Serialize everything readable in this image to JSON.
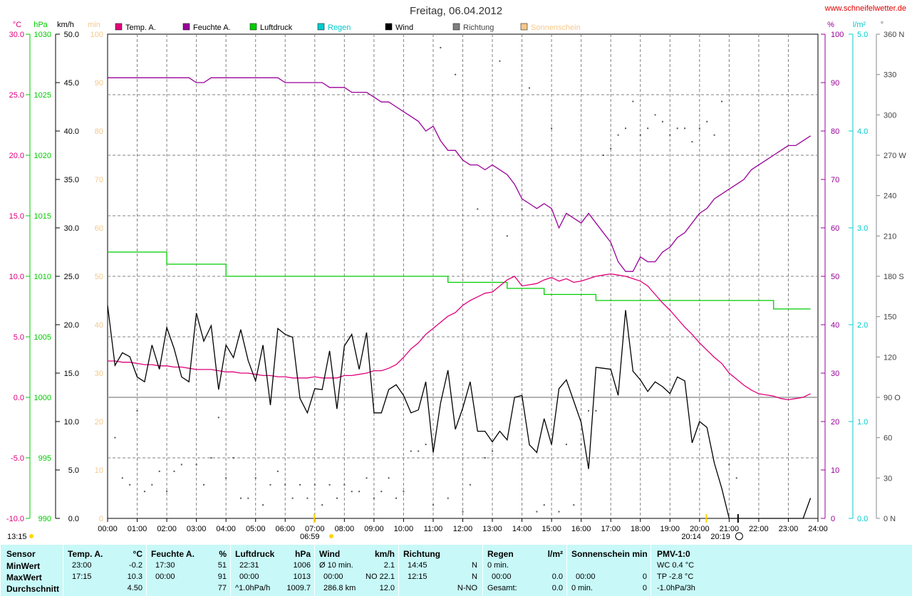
{
  "title": "Freitag, 06.04.2012",
  "site": "www.schneifelwetter.de",
  "colors": {
    "temp": "#e0007a",
    "humidity": "#990099",
    "pressure": "#00cc00",
    "rain": "#00cccc",
    "wind": "#000000",
    "direction": "#666666",
    "sunshine": "#f5c98a",
    "table_bg": "#c8f8f8"
  },
  "legend": [
    {
      "label": "Temp. A.",
      "color": "#e0007a"
    },
    {
      "label": "Feuchte A.",
      "color": "#990099"
    },
    {
      "label": "Luftdruck",
      "color": "#00cc00"
    },
    {
      "label": "Regen",
      "color": "#00cccc"
    },
    {
      "label": "Wind",
      "color": "#000000"
    },
    {
      "label": "Richtung",
      "color": "#808080"
    },
    {
      "label": "Sonnenschein",
      "color": "#f5c98a"
    }
  ],
  "axes": {
    "temp": {
      "unit": "°C",
      "ticks": [
        "30.0",
        "25.0",
        "20.0",
        "15.0",
        "10.0",
        "5.0",
        "0.0",
        "-5.0",
        "-10.0"
      ]
    },
    "pressure": {
      "unit": "hPa",
      "ticks": [
        "1030",
        "1025",
        "1020",
        "1015",
        "1010",
        "1005",
        "1000",
        "995",
        "990"
      ]
    },
    "wind": {
      "unit": "km/h",
      "ticks": [
        "50.0",
        "45.0",
        "40.0",
        "35.0",
        "30.0",
        "25.0",
        "20.0",
        "15.0",
        "10.0",
        "5.0",
        "0.0"
      ]
    },
    "sun": {
      "unit": "min",
      "ticks": [
        "100",
        "90",
        "80",
        "70",
        "60",
        "50",
        "40",
        "30",
        "20",
        "10",
        "0"
      ]
    },
    "humidity": {
      "unit": "%",
      "ticks": [
        "100",
        "90",
        "80",
        "70",
        "60",
        "50",
        "40",
        "30",
        "20",
        "10",
        "0"
      ]
    },
    "rain": {
      "unit": "l/m²",
      "ticks": [
        "5.0",
        "4.0",
        "3.0",
        "2.0",
        "1.0",
        "0.0"
      ]
    },
    "direction": {
      "unit": "°",
      "ticks": [
        "360 N",
        "330",
        "300",
        "270 W",
        "240",
        "210",
        "180 S",
        "150",
        "120",
        "90 O",
        "60",
        "30",
        "0 N"
      ]
    },
    "time": [
      "00:00",
      "01:00",
      "02:00",
      "03:00",
      "04:00",
      "05:00",
      "06:00",
      "07:00",
      "08:00",
      "09:00",
      "10:00",
      "11:00",
      "12:00",
      "13:00",
      "14:00",
      "15:00",
      "16:00",
      "17:00",
      "18:00",
      "19:00",
      "20:00",
      "21:00",
      "22:00",
      "23:00",
      "24:00"
    ]
  },
  "annotations": {
    "sunshine_left": "13:15",
    "sunrise": "06:59",
    "sunset": "20:14",
    "sunset2": "20:19"
  },
  "chart_data": {
    "type": "line",
    "title": "Freitag, 06.04.2012",
    "x_hours": [
      0,
      0.25,
      0.5,
      0.75,
      1,
      1.25,
      1.5,
      1.75,
      2,
      2.25,
      2.5,
      2.75,
      3,
      3.25,
      3.5,
      3.75,
      4,
      4.25,
      4.5,
      4.75,
      5,
      5.25,
      5.5,
      5.75,
      6,
      6.25,
      6.5,
      6.75,
      7,
      7.25,
      7.5,
      7.75,
      8,
      8.25,
      8.5,
      8.75,
      9,
      9.25,
      9.5,
      9.75,
      10,
      10.25,
      10.5,
      10.75,
      11,
      11.25,
      11.5,
      11.75,
      12,
      12.25,
      12.5,
      12.75,
      13,
      13.25,
      13.5,
      13.75,
      14,
      14.25,
      14.5,
      14.75,
      15,
      15.25,
      15.5,
      15.75,
      16,
      16.25,
      16.5,
      16.75,
      17,
      17.25,
      17.5,
      17.75,
      18,
      18.25,
      18.5,
      18.75,
      19,
      19.25,
      19.5,
      19.75,
      20,
      20.25,
      20.5,
      20.75,
      21,
      21.25,
      21.5,
      21.75,
      22,
      22.25,
      22.5,
      22.75,
      23,
      23.25,
      23.5,
      23.75
    ],
    "series": [
      {
        "name": "Temp. A.",
        "axis": "temp",
        "values": [
          3.0,
          3.0,
          2.9,
          2.9,
          2.8,
          2.7,
          2.7,
          2.6,
          2.6,
          2.5,
          2.5,
          2.4,
          2.3,
          2.3,
          2.3,
          2.2,
          2.1,
          2.1,
          2.0,
          2.0,
          1.9,
          1.8,
          1.8,
          1.7,
          1.7,
          1.6,
          1.6,
          1.6,
          1.7,
          1.6,
          1.6,
          1.6,
          1.8,
          1.8,
          1.9,
          2.0,
          2.2,
          2.2,
          2.4,
          2.7,
          3.3,
          4.0,
          4.5,
          5.2,
          5.7,
          6.2,
          6.7,
          7.0,
          7.6,
          8.0,
          8.3,
          8.6,
          8.7,
          9.2,
          9.7,
          10.0,
          9.2,
          9.3,
          9.4,
          9.7,
          9.9,
          9.6,
          9.8,
          9.5,
          9.6,
          9.8,
          10.0,
          10.1,
          10.2,
          10.1,
          10.0,
          9.8,
          9.6,
          9.2,
          8.5,
          7.8,
          7.2,
          6.5,
          5.8,
          5.2,
          4.5,
          3.9,
          3.3,
          2.8,
          2.0,
          1.5,
          1.0,
          0.6,
          0.3,
          0.2,
          0.1,
          -0.1,
          -0.2,
          -0.1,
          0.0,
          0.3
        ]
      },
      {
        "name": "Feuchte A.",
        "axis": "humidity",
        "values": [
          91,
          91,
          91,
          91,
          91,
          91,
          91,
          91,
          91,
          91,
          91,
          91,
          90,
          90,
          91,
          91,
          91,
          91,
          91,
          91,
          91,
          91,
          91,
          91,
          90,
          90,
          90,
          90,
          90,
          90,
          89,
          89,
          89,
          88,
          88,
          88,
          87,
          86,
          86,
          85,
          84,
          83,
          82,
          80,
          81,
          78,
          76,
          76,
          74,
          73,
          73,
          72,
          73,
          72,
          71,
          69,
          66,
          65,
          64,
          65,
          64,
          60,
          63,
          62,
          61,
          63,
          61,
          59,
          57,
          53,
          51,
          51,
          54,
          53,
          53,
          55,
          56,
          58,
          59,
          61,
          63,
          64,
          66,
          67,
          68,
          69,
          70,
          72,
          73,
          74,
          75,
          76,
          77,
          77,
          78,
          79
        ]
      },
      {
        "name": "Luftdruck",
        "axis": "pressure",
        "values": [
          1012,
          1012,
          1012,
          1012,
          1012,
          1012,
          1012,
          1012,
          1011,
          1011,
          1011,
          1011,
          1011,
          1011,
          1011,
          1011,
          1010,
          1010,
          1010,
          1010,
          1010,
          1010,
          1010,
          1010,
          1010,
          1010,
          1010,
          1010,
          1010,
          1010,
          1010,
          1010,
          1010,
          1010,
          1010,
          1010,
          1010,
          1010,
          1010,
          1010,
          1010,
          1010,
          1010,
          1010,
          1010,
          1010,
          1009.5,
          1009.5,
          1009.5,
          1009.5,
          1009.5,
          1009.5,
          1009.5,
          1009.5,
          1009,
          1009,
          1009,
          1009,
          1009,
          1008.5,
          1008.5,
          1008.5,
          1008.5,
          1008.5,
          1008.5,
          1008.5,
          1008,
          1008,
          1008,
          1008,
          1008,
          1008,
          1008,
          1008,
          1008,
          1008,
          1008,
          1008,
          1008,
          1008,
          1008,
          1008,
          1008,
          1008,
          1008,
          1008,
          1008,
          1008,
          1008,
          1008,
          1007.3,
          1007.3,
          1007.3,
          1007.3,
          1007.3,
          1007.3
        ]
      },
      {
        "name": "Wind",
        "axis": "wind",
        "values": [
          22.0,
          15.8,
          17.1,
          16.7,
          14.6,
          14.1,
          17.9,
          15.4,
          19.7,
          17.5,
          14.6,
          14.1,
          21.2,
          18.3,
          19.9,
          13.3,
          17.9,
          16.6,
          19.5,
          16.3,
          14.2,
          17.9,
          11.7,
          19.6,
          19.0,
          18.7,
          12.4,
          10.9,
          13.4,
          13.3,
          17.3,
          11.3,
          17.8,
          19.0,
          15.4,
          19.2,
          10.9,
          10.9,
          13.3,
          13.8,
          12.7,
          10.9,
          11.2,
          14.1,
          6.8,
          11.9,
          15.3,
          9.2,
          11.4,
          14.1,
          9.0,
          9.0,
          7.9,
          9.0,
          8.1,
          12.5,
          12.7,
          7.6,
          6.8,
          10.3,
          7.6,
          13.4,
          14.3,
          12.1,
          9.9,
          5.1,
          15.6,
          15.5,
          15.4,
          12.7,
          21.5,
          15.2,
          14.3,
          13.1,
          14.1,
          13.6,
          12.9,
          14.6,
          14.2,
          7.8,
          10.0,
          9.4,
          5.7,
          3.1,
          0.0,
          0.0,
          0.0,
          0.0,
          0.0,
          0.0,
          0.0,
          0.0,
          0.0,
          0.0,
          0.0,
          2.1
        ]
      },
      {
        "name": "Richtung",
        "axis": "direction",
        "points": [
          [
            0.25,
            60
          ],
          [
            0.5,
            30
          ],
          [
            0.75,
            25
          ],
          [
            1.0,
            80
          ],
          [
            1.25,
            20
          ],
          [
            1.5,
            25
          ],
          [
            1.75,
            35
          ],
          [
            2.0,
            20
          ],
          [
            2.25,
            35
          ],
          [
            2.5,
            40
          ],
          [
            3.0,
            40
          ],
          [
            3.25,
            25
          ],
          [
            3.5,
            45
          ],
          [
            3.75,
            75
          ],
          [
            4.0,
            30
          ],
          [
            4.25,
            45
          ],
          [
            4.5,
            15
          ],
          [
            4.75,
            15
          ],
          [
            5.0,
            30
          ],
          [
            5.25,
            10
          ],
          [
            5.5,
            25
          ],
          [
            5.75,
            35
          ],
          [
            6.0,
            25
          ],
          [
            6.25,
            15
          ],
          [
            6.5,
            25
          ],
          [
            6.75,
            15
          ],
          [
            7.0,
            25
          ],
          [
            7.25,
            10
          ],
          [
            7.5,
            25
          ],
          [
            7.75,
            15
          ],
          [
            8.0,
            25
          ],
          [
            8.25,
            20
          ],
          [
            8.5,
            20
          ],
          [
            8.75,
            30
          ],
          [
            9.0,
            15
          ],
          [
            9.25,
            20
          ],
          [
            9.5,
            30
          ],
          [
            9.75,
            15
          ],
          [
            10.0,
            20
          ],
          [
            10.25,
            50
          ],
          [
            10.5,
            50
          ],
          [
            10.75,
            55
          ],
          [
            11.0,
            10
          ],
          [
            11.25,
            350
          ],
          [
            11.5,
            15
          ],
          [
            11.75,
            330
          ],
          [
            12.0,
            5
          ],
          [
            12.25,
            25
          ],
          [
            12.5,
            230
          ],
          [
            12.75,
            45
          ],
          [
            13.0,
            50
          ],
          [
            13.25,
            340
          ],
          [
            13.5,
            210
          ],
          [
            14.0,
            230
          ],
          [
            14.25,
            320
          ],
          [
            14.5,
            5
          ],
          [
            14.75,
            10
          ],
          [
            15.0,
            290
          ],
          [
            15.25,
            5
          ],
          [
            15.5,
            55
          ],
          [
            15.75,
            10
          ],
          [
            16.0,
            55
          ],
          [
            16.25,
            80
          ],
          [
            16.5,
            80
          ],
          [
            16.75,
            270
          ],
          [
            17.0,
            275
          ],
          [
            17.25,
            285
          ],
          [
            17.5,
            290
          ],
          [
            17.75,
            310
          ],
          [
            18.0,
            285
          ],
          [
            18.25,
            290
          ],
          [
            18.5,
            300
          ],
          [
            18.75,
            295
          ],
          [
            19.0,
            285
          ],
          [
            19.25,
            290
          ],
          [
            19.5,
            290
          ],
          [
            19.75,
            280
          ],
          [
            20.0,
            290
          ],
          [
            20.25,
            295
          ],
          [
            20.5,
            285
          ],
          [
            20.75,
            310
          ],
          [
            21.0,
            40
          ],
          [
            21.25,
            30
          ]
        ]
      },
      {
        "name": "Sonnenschein",
        "axis": "sun",
        "values": []
      }
    ],
    "xlabel": "",
    "xlim": [
      0,
      24
    ]
  },
  "table": {
    "sensor": {
      "header": "Sensor",
      "rows": [
        "MinWert",
        "MaxWert",
        "Durchschnitt"
      ]
    },
    "temp": {
      "header": "Temp. A.",
      "unit": "°C",
      "time": [
        "23:00",
        "17:15",
        ""
      ],
      "val": [
        "-0.2",
        "10.3",
        "4.50"
      ]
    },
    "hum": {
      "header": "Feuchte A.",
      "unit": "%",
      "time": [
        "17:30",
        "00:00",
        ""
      ],
      "val": [
        "51",
        "91",
        "77"
      ]
    },
    "press": {
      "header": "Luftdruck",
      "unit": "hPa",
      "time": [
        "22:31",
        "00:00",
        "^1.0hPa/h"
      ],
      "val": [
        "1006",
        "1013",
        "1009.7"
      ]
    },
    "wind": {
      "header": "Wind",
      "unit": "km/h",
      "time": [
        "Ø 10 min.",
        "00:00",
        "286.8 km"
      ],
      "val": [
        "2.1",
        "NO 22.1",
        "12.0"
      ]
    },
    "dir": {
      "header": "Richtung",
      "time": [
        "14:45",
        "12:15",
        ""
      ],
      "val": [
        "N",
        "N",
        "N-NO"
      ]
    },
    "rain": {
      "header": "Regen",
      "unit": "l/m²",
      "time": [
        "0 min.",
        "00:00",
        "Gesamt:"
      ],
      "val": [
        "",
        "0.0",
        "0.0"
      ]
    },
    "sun": {
      "header": "Sonnenschein min",
      "time": [
        "",
        "00:00",
        "0 min."
      ],
      "val": [
        "",
        "0",
        "0"
      ]
    },
    "pmv": {
      "header": "PMV-1:0",
      "lines": [
        "WC 0.4 °C",
        "TP -2.8 °C",
        "-1.0hPa/3h"
      ]
    }
  }
}
